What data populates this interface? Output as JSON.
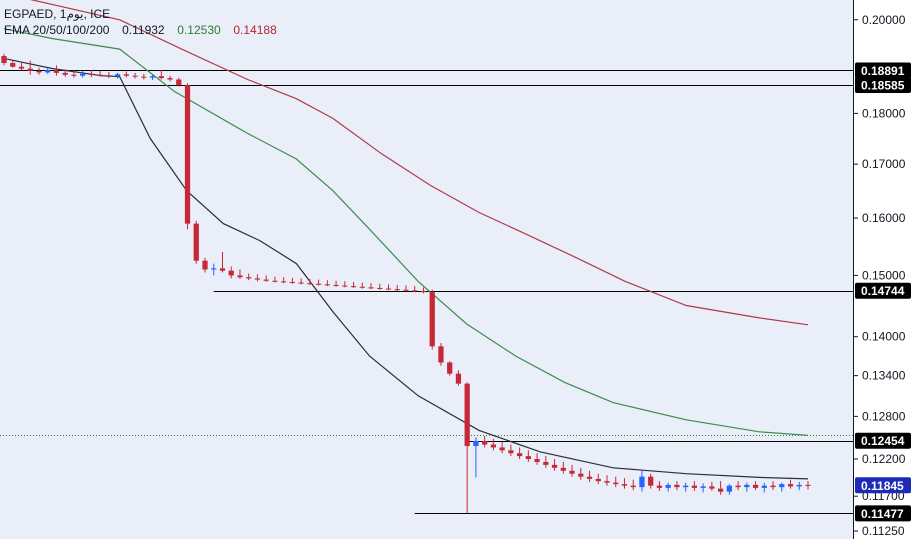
{
  "header": {
    "symbol_line": "EGPAED, 1يوم, ICE",
    "ema_label": "EMA 20/50/100/200",
    "ema_values": [
      {
        "text": "0.11932",
        "color": "#131722"
      },
      {
        "text": "0.12530",
        "color": "#2e7d32"
      },
      {
        "text": "0.14188",
        "color": "#b22833"
      }
    ]
  },
  "colors": {
    "background": "#e9eef8",
    "up_candle": "#2962ff",
    "down_candle": "#c62836",
    "ema20": "#2a2e39",
    "ema50": "#3f8a4c",
    "ema100": "#b03a48",
    "level_line": "#000000",
    "label_bg": "#000000",
    "last_price_bg": "#1c2cb8",
    "dotted_line": "#2e7d32"
  },
  "chart_data": {
    "type": "line",
    "title": "EGPAED, 1يوم, ICE",
    "scale": "log",
    "ylim": [
      0.1115,
      0.2045
    ],
    "y_ticks": [
      "0.20000",
      "0.18000",
      "0.17000",
      "0.16000",
      "0.15000",
      "0.14000",
      "0.13400",
      "0.12800",
      "0.12200",
      "0.11700",
      "0.11250"
    ],
    "price_labels": [
      {
        "value": 0.18891,
        "text": "0.18891",
        "kind": "level"
      },
      {
        "value": 0.18585,
        "text": "0.18585",
        "kind": "level"
      },
      {
        "value": 0.14744,
        "text": "0.14744",
        "kind": "level"
      },
      {
        "value": 0.12454,
        "text": "0.12454",
        "kind": "level"
      },
      {
        "value": 0.11845,
        "text": "0.11845",
        "kind": "last"
      },
      {
        "value": 0.11477,
        "text": "0.11477",
        "kind": "level"
      }
    ],
    "series": [
      {
        "name": "EMA 20",
        "color": "#131722",
        "points": [
          [
            0,
            0.1915
          ],
          [
            40,
            0.1893
          ],
          [
            80,
            0.1878
          ],
          [
            95,
            0.1876
          ],
          [
            120,
            0.175
          ],
          [
            150,
            0.165
          ],
          [
            180,
            0.159
          ],
          [
            210,
            0.156
          ],
          [
            240,
            0.152
          ],
          [
            270,
            0.144
          ],
          [
            300,
            0.137
          ],
          [
            340,
            0.131
          ],
          [
            390,
            0.126
          ],
          [
            440,
            0.123
          ],
          [
            500,
            0.1208
          ],
          [
            560,
            0.12
          ],
          [
            620,
            0.1195
          ],
          [
            660,
            0.1193
          ]
        ]
      },
      {
        "name": "EMA 50",
        "color": "#2e7d32",
        "points": [
          [
            0,
            0.198
          ],
          [
            40,
            0.1958
          ],
          [
            95,
            0.1935
          ],
          [
            140,
            0.1845
          ],
          [
            200,
            0.176
          ],
          [
            240,
            0.171
          ],
          [
            270,
            0.165
          ],
          [
            300,
            0.158
          ],
          [
            340,
            0.149
          ],
          [
            380,
            0.142
          ],
          [
            420,
            0.137
          ],
          [
            460,
            0.133
          ],
          [
            500,
            0.13
          ],
          [
            560,
            0.1275
          ],
          [
            620,
            0.1258
          ],
          [
            660,
            0.1253
          ]
        ]
      },
      {
        "name": "EMA 100",
        "color": "#b22833",
        "points": [
          [
            0,
            0.206
          ],
          [
            95,
            0.2
          ],
          [
            150,
            0.193
          ],
          [
            200,
            0.187
          ],
          [
            240,
            0.183
          ],
          [
            270,
            0.179
          ],
          [
            310,
            0.172
          ],
          [
            350,
            0.166
          ],
          [
            390,
            0.161
          ],
          [
            430,
            0.157
          ],
          [
            470,
            0.153
          ],
          [
            510,
            0.149
          ],
          [
            560,
            0.145
          ],
          [
            620,
            0.143
          ],
          [
            660,
            0.1419
          ]
        ]
      }
    ],
    "candles": [
      [
        0.192,
        0.1925,
        0.19,
        0.1905
      ],
      [
        0.1905,
        0.191,
        0.1895,
        0.1897
      ],
      [
        0.1897,
        0.1905,
        0.189,
        0.1893
      ],
      [
        0.1893,
        0.191,
        0.188,
        0.1888
      ],
      [
        0.1888,
        0.1895,
        0.188,
        0.1885
      ],
      [
        0.1885,
        0.1895,
        0.1882,
        0.189
      ],
      [
        0.189,
        0.19,
        0.1878,
        0.1884
      ],
      [
        0.1884,
        0.1892,
        0.1876,
        0.188
      ],
      [
        0.188,
        0.189,
        0.1874,
        0.1878
      ],
      [
        0.1878,
        0.1888,
        0.1874,
        0.1882
      ],
      [
        0.1882,
        0.189,
        0.1875,
        0.188
      ],
      [
        0.188,
        0.1888,
        0.1876,
        0.1879
      ],
      [
        0.1879,
        0.1886,
        0.1873,
        0.1877
      ],
      [
        0.1877,
        0.1884,
        0.1872,
        0.1881
      ],
      [
        0.1881,
        0.1887,
        0.1874,
        0.1878
      ],
      [
        0.1878,
        0.1884,
        0.1872,
        0.1876
      ],
      [
        0.1876,
        0.1882,
        0.187,
        0.1874
      ],
      [
        0.1874,
        0.188,
        0.1869,
        0.1877
      ],
      [
        0.1877,
        0.189,
        0.187,
        0.1873
      ],
      [
        0.1873,
        0.1878,
        0.1866,
        0.187
      ],
      [
        0.187,
        0.1874,
        0.1855,
        0.1858
      ],
      [
        0.1858,
        0.1862,
        0.158,
        0.159
      ],
      [
        0.159,
        0.1595,
        0.152,
        0.1525
      ],
      [
        0.1525,
        0.153,
        0.1505,
        0.151
      ],
      [
        0.151,
        0.152,
        0.15,
        0.1512
      ],
      [
        0.1512,
        0.154,
        0.1505,
        0.1508
      ],
      [
        0.1508,
        0.1515,
        0.1495,
        0.15
      ],
      [
        0.15,
        0.151,
        0.1494,
        0.1497
      ],
      [
        0.1497,
        0.1503,
        0.1492,
        0.1495
      ],
      [
        0.1495,
        0.1502,
        0.149,
        0.1493
      ],
      [
        0.1493,
        0.15,
        0.1489,
        0.1491
      ],
      [
        0.1491,
        0.1498,
        0.1488,
        0.149
      ],
      [
        0.149,
        0.1497,
        0.1487,
        0.1489
      ],
      [
        0.1489,
        0.1496,
        0.1486,
        0.1488
      ],
      [
        0.1488,
        0.1495,
        0.1485,
        0.1487
      ],
      [
        0.1487,
        0.1494,
        0.1484,
        0.1486
      ],
      [
        0.1486,
        0.1493,
        0.1483,
        0.1485
      ],
      [
        0.1485,
        0.1492,
        0.1482,
        0.1484
      ],
      [
        0.1484,
        0.1491,
        0.1481,
        0.1483
      ],
      [
        0.1483,
        0.149,
        0.148,
        0.1482
      ],
      [
        0.1482,
        0.1489,
        0.1479,
        0.1481
      ],
      [
        0.1481,
        0.1488,
        0.1478,
        0.148
      ],
      [
        0.148,
        0.1487,
        0.1477,
        0.1479
      ],
      [
        0.1479,
        0.1486,
        0.1476,
        0.1478
      ],
      [
        0.1478,
        0.1485,
        0.1475,
        0.1477
      ],
      [
        0.1477,
        0.1484,
        0.1474,
        0.1476
      ],
      [
        0.1476,
        0.1483,
        0.1473,
        0.1475
      ],
      [
        0.1475,
        0.1482,
        0.1472,
        0.1474
      ],
      [
        0.1474,
        0.148,
        0.147,
        0.1472
      ],
      [
        0.1472,
        0.1476,
        0.138,
        0.1385
      ],
      [
        0.1385,
        0.139,
        0.1355,
        0.136
      ],
      [
        0.136,
        0.1362,
        0.134,
        0.1343
      ],
      [
        0.1343,
        0.1348,
        0.1325,
        0.1328
      ],
      [
        0.1328,
        0.133,
        0.1148,
        0.1238
      ],
      [
        0.1238,
        0.125,
        0.1195,
        0.1245
      ],
      [
        0.1245,
        0.1252,
        0.1236,
        0.124
      ],
      [
        0.124,
        0.1248,
        0.1232,
        0.1236
      ],
      [
        0.1236,
        0.1244,
        0.1228,
        0.1232
      ],
      [
        0.1232,
        0.124,
        0.1224,
        0.1228
      ],
      [
        0.1228,
        0.1236,
        0.122,
        0.1224
      ],
      [
        0.1224,
        0.1232,
        0.1216,
        0.122
      ],
      [
        0.122,
        0.1228,
        0.1212,
        0.1216
      ],
      [
        0.1216,
        0.1224,
        0.1208,
        0.1212
      ],
      [
        0.1212,
        0.122,
        0.1204,
        0.1208
      ],
      [
        0.1208,
        0.1216,
        0.12,
        0.1204
      ],
      [
        0.1204,
        0.1212,
        0.1196,
        0.12
      ],
      [
        0.12,
        0.1208,
        0.1192,
        0.1196
      ],
      [
        0.1196,
        0.1204,
        0.1189,
        0.1193
      ],
      [
        0.1193,
        0.12,
        0.1186,
        0.119
      ],
      [
        0.119,
        0.1198,
        0.1184,
        0.1188
      ],
      [
        0.1188,
        0.1196,
        0.1182,
        0.1186
      ],
      [
        0.1186,
        0.1194,
        0.118,
        0.1184
      ],
      [
        0.1184,
        0.1192,
        0.1178,
        0.1182
      ],
      [
        0.1182,
        0.1205,
        0.1176,
        0.1196
      ],
      [
        0.1196,
        0.12,
        0.118,
        0.1184
      ],
      [
        0.1184,
        0.119,
        0.1177,
        0.1181
      ],
      [
        0.1181,
        0.1188,
        0.1176,
        0.1185
      ],
      [
        0.1185,
        0.119,
        0.1178,
        0.1182
      ],
      [
        0.1182,
        0.1188,
        0.1176,
        0.1184
      ],
      [
        0.1184,
        0.119,
        0.1177,
        0.1181
      ],
      [
        0.1181,
        0.1187,
        0.1175,
        0.1183
      ],
      [
        0.1183,
        0.1189,
        0.1177,
        0.118
      ],
      [
        0.118,
        0.119,
        0.1172,
        0.1176
      ],
      [
        0.1176,
        0.1186,
        0.1172,
        0.1184
      ],
      [
        0.1184,
        0.119,
        0.1178,
        0.1182
      ],
      [
        0.1182,
        0.1188,
        0.1176,
        0.1185
      ],
      [
        0.1185,
        0.119,
        0.1178,
        0.1181
      ],
      [
        0.1181,
        0.1188,
        0.1175,
        0.1184
      ],
      [
        0.1184,
        0.119,
        0.1178,
        0.1182
      ],
      [
        0.1182,
        0.1188,
        0.1176,
        0.1186
      ],
      [
        0.1186,
        0.1192,
        0.118,
        0.1183
      ],
      [
        0.1183,
        0.1189,
        0.1178,
        0.1185
      ],
      [
        0.1185,
        0.119,
        0.1179,
        0.1184
      ]
    ]
  }
}
